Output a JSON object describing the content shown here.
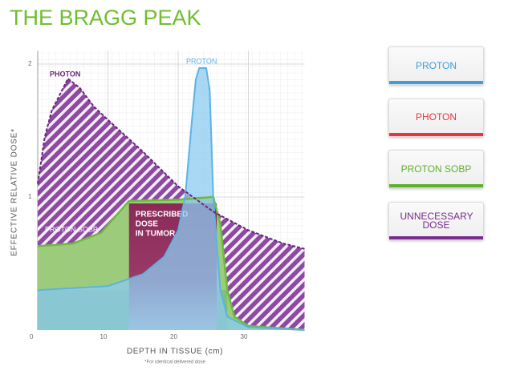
{
  "chart_data": {
    "type": "line",
    "title": "THE BRAGG PEAK",
    "x_label": "DEPTH IN TISSUE (cm)",
    "y_label": "EFFECTIVE RELATIVE DOSE*",
    "footnote": "*For identical delivered dose",
    "annotation": [
      "PRESCRIBED",
      "DOSE",
      "IN TUMOR"
    ],
    "tumor_range": [
      13,
      25.5
    ],
    "xlim": [
      0,
      38
    ],
    "ylim": [
      0,
      2.1
    ],
    "xticks": [
      0,
      10,
      20,
      30
    ],
    "yticks": [
      1,
      2
    ],
    "grid": true,
    "series": [
      {
        "name": "PHOTON",
        "color": "#6b2380",
        "x": [
          0,
          1,
          2,
          4.3,
          6,
          8,
          10,
          15,
          20,
          25,
          30,
          35,
          38
        ],
        "values": [
          1.1,
          1.45,
          1.65,
          1.89,
          1.82,
          1.68,
          1.58,
          1.34,
          1.08,
          0.89,
          0.75,
          0.65,
          0.61
        ]
      },
      {
        "name": "PROTON",
        "color": "#5cb3e4",
        "x": [
          0,
          10,
          15,
          18,
          20,
          21,
          22,
          22.5,
          23,
          24,
          24.5,
          25,
          26,
          27,
          30,
          38
        ],
        "values": [
          0.3,
          0.33,
          0.42,
          0.55,
          0.75,
          1.0,
          1.6,
          1.88,
          1.97,
          1.97,
          1.8,
          1.0,
          0.3,
          0.1,
          0.02,
          0
        ]
      },
      {
        "name": "PROTON SOBP",
        "color": "#6dbb3c",
        "x": [
          0,
          5,
          9,
          13,
          20,
          25,
          26,
          27,
          28,
          30,
          38
        ],
        "values": [
          0.63,
          0.65,
          0.73,
          0.97,
          0.98,
          1.0,
          0.8,
          0.3,
          0.1,
          0.03,
          0
        ]
      }
    ]
  },
  "buttons": [
    {
      "label": "PROTON",
      "color": "#3aa0d8"
    },
    {
      "label": "PHOTON",
      "color": "#e8343a"
    },
    {
      "label": "PROTON SOBP",
      "color": "#5fae2e"
    },
    {
      "label": "UNNECESSARY DOSE",
      "color": "#7b2a8f"
    }
  ]
}
